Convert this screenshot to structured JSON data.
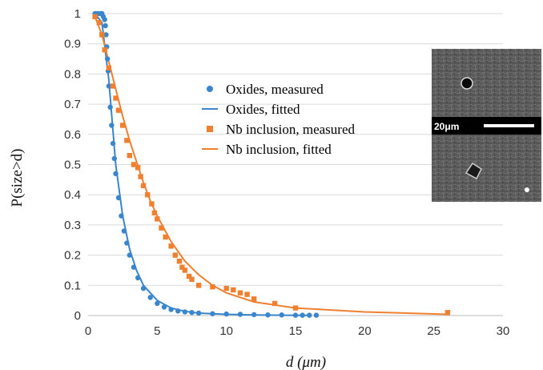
{
  "chart_data": {
    "type": "scatter",
    "xlabel": "d (μm)",
    "ylabel": "P(size>d)",
    "xlim": [
      0,
      30
    ],
    "ylim": [
      0,
      1
    ],
    "xticks": [
      "0",
      "5",
      "10",
      "15",
      "20",
      "25",
      "30"
    ],
    "yticks": [
      "0",
      "0.1",
      "0.2",
      "0.3",
      "0.4",
      "0.5",
      "0.6",
      "0.7",
      "0.8",
      "0.9",
      "1"
    ],
    "grid": "horizontal",
    "legend_position": "center-right",
    "series": [
      {
        "name": "Oxides, measured",
        "kind": "marker",
        "marker": "circle",
        "color": "#3a86cc",
        "x": [
          0.5,
          0.7,
          0.9,
          1.0,
          1.1,
          1.2,
          1.25,
          1.3,
          1.35,
          1.4,
          1.45,
          1.5,
          1.6,
          1.7,
          1.8,
          1.9,
          2.0,
          2.2,
          2.4,
          2.6,
          2.8,
          3.0,
          3.3,
          3.6,
          4.0,
          4.5,
          5.0,
          5.5,
          6.0,
          6.5,
          7.0,
          7.5,
          8.0,
          9.0,
          10.0,
          11.0,
          12.0,
          13.0,
          14.0,
          15.0,
          15.5,
          16.0,
          16.5
        ],
        "y": [
          1.0,
          1.0,
          1.0,
          1.0,
          0.99,
          0.98,
          0.96,
          0.93,
          0.89,
          0.85,
          0.81,
          0.76,
          0.69,
          0.63,
          0.57,
          0.52,
          0.47,
          0.39,
          0.33,
          0.28,
          0.24,
          0.2,
          0.16,
          0.125,
          0.09,
          0.06,
          0.04,
          0.028,
          0.02,
          0.015,
          0.012,
          0.01,
          0.008,
          0.006,
          0.005,
          0.004,
          0.003,
          0.002,
          0.002,
          0.001,
          0.001,
          0.001,
          0.001
        ]
      },
      {
        "name": "Oxides, fitted",
        "kind": "line",
        "color": "#3a86cc",
        "x": [
          0.5,
          1.0,
          1.5,
          2.0,
          2.5,
          3.0,
          3.5,
          4.0,
          5.0,
          6.0,
          7.0,
          8.0,
          10.0,
          12.0,
          14.0,
          16.0
        ],
        "y": [
          1.0,
          0.97,
          0.78,
          0.5,
          0.33,
          0.22,
          0.15,
          0.1,
          0.05,
          0.025,
          0.014,
          0.008,
          0.004,
          0.002,
          0.001,
          0.0005
        ]
      },
      {
        "name": "Nb inclusion, measured",
        "kind": "marker",
        "marker": "square",
        "color": "#f08030",
        "x": [
          0.5,
          0.8,
          1.0,
          1.2,
          1.5,
          1.8,
          2.0,
          2.2,
          2.5,
          2.8,
          3.0,
          3.3,
          3.6,
          3.8,
          4.0,
          4.3,
          4.6,
          4.8,
          5.0,
          5.3,
          5.6,
          6.0,
          6.3,
          6.6,
          6.8,
          7.0,
          7.3,
          7.5,
          8.0,
          9.0,
          10.0,
          10.5,
          11.0,
          11.5,
          12.0,
          13.5,
          15.0,
          26.0
        ],
        "y": [
          0.99,
          0.97,
          0.93,
          0.88,
          0.82,
          0.76,
          0.72,
          0.68,
          0.63,
          0.58,
          0.53,
          0.5,
          0.49,
          0.46,
          0.43,
          0.4,
          0.37,
          0.34,
          0.32,
          0.29,
          0.26,
          0.23,
          0.2,
          0.18,
          0.16,
          0.15,
          0.13,
          0.12,
          0.1,
          0.095,
          0.09,
          0.085,
          0.075,
          0.07,
          0.055,
          0.04,
          0.025,
          0.01
        ]
      },
      {
        "name": "Nb inclusion, fitted",
        "kind": "line",
        "color": "#f08030",
        "x": [
          0.5,
          1.0,
          1.5,
          2.0,
          2.5,
          3.0,
          3.5,
          4.0,
          4.5,
          5.0,
          6.0,
          7.0,
          8.0,
          9.0,
          10.0,
          12.0,
          15.0,
          20.0,
          26.0
        ],
        "y": [
          0.99,
          0.93,
          0.84,
          0.75,
          0.66,
          0.58,
          0.51,
          0.44,
          0.38,
          0.33,
          0.245,
          0.18,
          0.135,
          0.1,
          0.075,
          0.045,
          0.025,
          0.012,
          0.004
        ]
      }
    ],
    "inset": {
      "scale_label": "20μm"
    }
  }
}
